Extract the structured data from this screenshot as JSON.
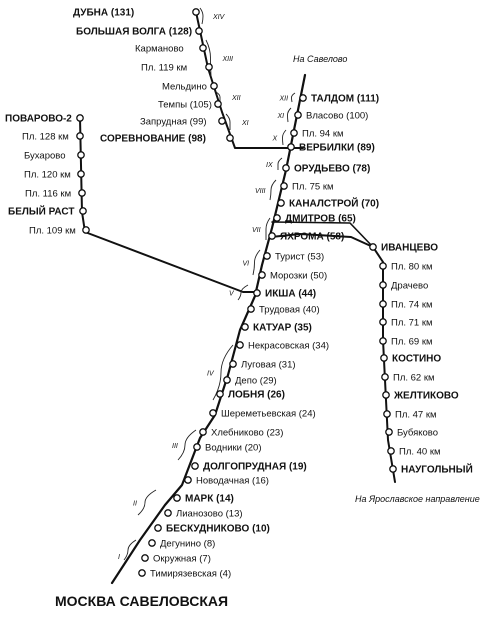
{
  "title": "МОСКВА САВЕЛОВСКАЯ",
  "notes": {
    "savelovo": "На Савелово",
    "yaroslavl": "На Ярославское направление"
  },
  "main_stations": [
    {
      "name": "Тимирязевская (4)",
      "bold": false
    },
    {
      "name": "Окружная (7)",
      "bold": false
    },
    {
      "name": "Дегунино (8)",
      "bold": false
    },
    {
      "name": "БЕСКУДНИКОВО (10)",
      "bold": true
    },
    {
      "name": "Лианозово (13)",
      "bold": false
    },
    {
      "name": "МАРК (14)",
      "bold": true
    },
    {
      "name": "Новодачная (16)",
      "bold": false
    },
    {
      "name": "ДОЛГОПРУДНАЯ (19)",
      "bold": true
    },
    {
      "name": "Водники (20)",
      "bold": false
    },
    {
      "name": "Хлебниково (23)",
      "bold": false
    },
    {
      "name": "Шереметьевская (24)",
      "bold": false
    },
    {
      "name": "ЛОБНЯ (26)",
      "bold": true
    },
    {
      "name": "Депо (29)",
      "bold": false
    },
    {
      "name": "Луговая (31)",
      "bold": false
    },
    {
      "name": "Некрасовская (34)",
      "bold": false
    },
    {
      "name": "КАТУАР (35)",
      "bold": true
    },
    {
      "name": "Трудовая (40)",
      "bold": false
    },
    {
      "name": "ИКША (44)",
      "bold": true
    },
    {
      "name": "Морозки (50)",
      "bold": false
    },
    {
      "name": "Турист (53)",
      "bold": false
    },
    {
      "name": "ЯХРОМА (58)",
      "bold": true
    },
    {
      "name": "ДМИТРОВ (65)",
      "bold": true
    },
    {
      "name": "КАНАЛСТРОЙ (70)",
      "bold": true
    },
    {
      "name": "Пл. 75 км",
      "bold": false
    },
    {
      "name": "ОРУДЬЕВО (78)",
      "bold": true
    },
    {
      "name": "ВЕРБИЛКИ (89)",
      "bold": true
    },
    {
      "name": "Пл. 94 км",
      "bold": false
    },
    {
      "name": "Власово (100)",
      "bold": false
    },
    {
      "name": "ТАЛДОМ (111)",
      "bold": true
    }
  ],
  "dubna_stations": [
    {
      "name": "ДУБНА (131)",
      "bold": true
    },
    {
      "name": "БОЛЬШАЯ ВОЛГА (128)",
      "bold": true
    },
    {
      "name": "Карманово",
      "bold": false
    },
    {
      "name": "Пл. 119 км",
      "bold": false
    },
    {
      "name": "Мельдино",
      "bold": false
    },
    {
      "name": "Темпы (105)",
      "bold": false
    },
    {
      "name": "Запрудная (99)",
      "bold": false
    },
    {
      "name": "СОРЕВНОВАНИЕ (98)",
      "bold": true
    }
  ],
  "povarovo_stations": [
    {
      "name": "ПОВАРОВО-2",
      "bold": true
    },
    {
      "name": "Пл. 128 км",
      "bold": false
    },
    {
      "name": "Бухарово",
      "bold": false
    },
    {
      "name": "Пл. 120 км",
      "bold": false
    },
    {
      "name": "Пл. 116 км",
      "bold": false
    },
    {
      "name": "БЕЛЫЙ РАСТ",
      "bold": true
    },
    {
      "name": "Пл. 109 км",
      "bold": false
    }
  ],
  "ivantsevo_stations": [
    {
      "name": "ИВАНЦЕВО",
      "bold": true
    },
    {
      "name": "Пл. 80 км",
      "bold": false
    },
    {
      "name": "Драчево",
      "bold": false
    },
    {
      "name": "Пл. 74 км",
      "bold": false
    },
    {
      "name": "Пл. 71 км",
      "bold": false
    },
    {
      "name": "Пл. 69 км",
      "bold": false
    },
    {
      "name": "КОСТИНО",
      "bold": true
    },
    {
      "name": "Пл. 62 км",
      "bold": false
    },
    {
      "name": "ЖЕЛТИКОВО",
      "bold": true
    },
    {
      "name": "Пл. 47 км",
      "bold": false
    },
    {
      "name": "Бубяково",
      "bold": false
    },
    {
      "name": "Пл. 40 км",
      "bold": false
    },
    {
      "name": "НАУГОЛЬНЫЙ",
      "bold": true
    }
  ],
  "zones": [
    "I",
    "II",
    "III",
    "IV",
    "V",
    "VI",
    "VII",
    "VIII",
    "IX",
    "X",
    "XI",
    "XII",
    "XI",
    "XII",
    "XIII",
    "XIV"
  ]
}
